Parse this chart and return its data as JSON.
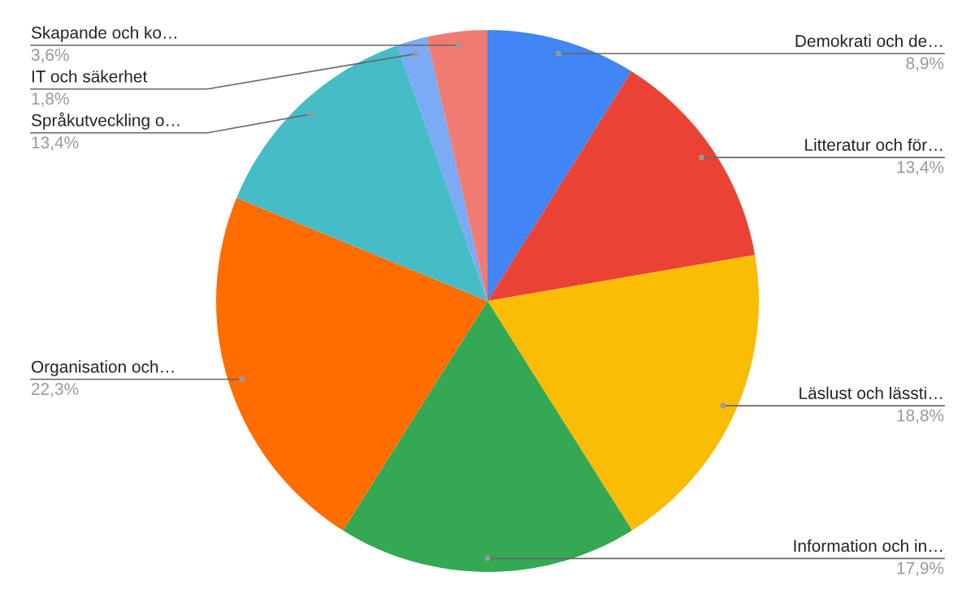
{
  "chart_data": {
    "type": "pie",
    "categories": [
      "Demokrati och de…",
      "Litteratur och för…",
      "Läslust och lässti…",
      "Information och in…",
      "Organisation och…",
      "Språkutveckling o…",
      "IT och säkerhet",
      "Skapande och ko…"
    ],
    "values": [
      8.9,
      13.4,
      18.8,
      17.9,
      22.3,
      13.4,
      1.8,
      3.6
    ],
    "value_labels": [
      "8,9%",
      "13,4%",
      "18,8%",
      "17,9%",
      "22,3%",
      "13,4%",
      "1,8%",
      "3,6%"
    ],
    "colors": [
      "#4285f4",
      "#ea4335",
      "#fbbc04",
      "#34a853",
      "#ff6d01",
      "#46bdc6",
      "#7baaf7",
      "#f07b72"
    ],
    "legend": false
  }
}
